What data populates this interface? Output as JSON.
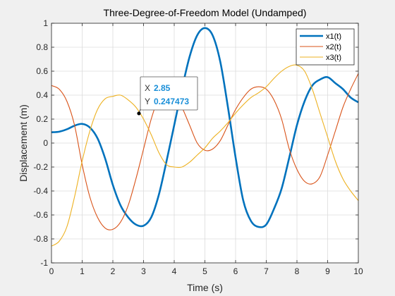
{
  "chart_data": {
    "type": "line",
    "title": "Three-Degree-of-Freedom Model (Undamped)",
    "xlabel": "Time (s)",
    "ylabel": "Displacement (m)",
    "xlim": [
      0,
      10
    ],
    "ylim": [
      -1,
      1
    ],
    "xticks": [
      "0",
      "1",
      "2",
      "3",
      "4",
      "5",
      "6",
      "7",
      "8",
      "9",
      "10"
    ],
    "yticks": [
      "-1",
      "-0.8",
      "-0.6",
      "-0.4",
      "-0.2",
      "0",
      "0.2",
      "0.4",
      "0.6",
      "0.8",
      "1"
    ],
    "grid": true,
    "legend_location": "top-right",
    "series": [
      {
        "name": "x1(t)",
        "color": "#0072bd",
        "x": [
          0,
          0.25,
          0.5,
          0.75,
          1.0,
          1.25,
          1.5,
          1.75,
          2.0,
          2.25,
          2.5,
          2.75,
          3.0,
          3.25,
          3.5,
          3.75,
          4.0,
          4.25,
          4.5,
          4.75,
          5.0,
          5.25,
          5.5,
          5.75,
          6.0,
          6.25,
          6.5,
          6.75,
          7.0,
          7.25,
          7.5,
          7.75,
          8.0,
          8.25,
          8.5,
          8.75,
          9.0,
          9.25,
          9.5,
          9.75,
          10.0
        ],
        "y": [
          0.09,
          0.095,
          0.115,
          0.145,
          0.16,
          0.13,
          0.04,
          -0.13,
          -0.35,
          -0.52,
          -0.62,
          -0.68,
          -0.69,
          -0.62,
          -0.43,
          -0.15,
          0.15,
          0.45,
          0.72,
          0.9,
          0.96,
          0.9,
          0.68,
          0.3,
          -0.12,
          -0.48,
          -0.65,
          -0.7,
          -0.68,
          -0.55,
          -0.38,
          -0.12,
          0.15,
          0.35,
          0.48,
          0.53,
          0.55,
          0.5,
          0.45,
          0.38,
          0.34
        ]
      },
      {
        "name": "x2(t)",
        "color": "#d95319",
        "x": [
          0,
          0.25,
          0.5,
          0.75,
          1.0,
          1.25,
          1.5,
          1.75,
          2.0,
          2.25,
          2.5,
          2.75,
          3.0,
          3.25,
          3.5,
          3.75,
          4.0,
          4.25,
          4.5,
          4.75,
          5.0,
          5.25,
          5.5,
          5.75,
          6.0,
          6.25,
          6.5,
          6.75,
          7.0,
          7.25,
          7.5,
          7.75,
          8.0,
          8.25,
          8.5,
          8.75,
          9.0,
          9.25,
          9.5,
          9.75,
          10.0
        ],
        "y": [
          0.48,
          0.45,
          0.35,
          0.15,
          -0.18,
          -0.45,
          -0.62,
          -0.71,
          -0.72,
          -0.66,
          -0.52,
          -0.3,
          -0.05,
          0.2,
          0.38,
          0.45,
          0.42,
          0.3,
          0.15,
          0.0,
          -0.06,
          -0.05,
          0.02,
          0.15,
          0.28,
          0.38,
          0.45,
          0.47,
          0.45,
          0.36,
          0.2,
          -0.05,
          -0.22,
          -0.32,
          -0.34,
          -0.28,
          -0.1,
          0.1,
          0.3,
          0.45,
          0.58
        ]
      },
      {
        "name": "x3(t)",
        "color": "#edb120",
        "x": [
          0,
          0.25,
          0.5,
          0.75,
          1.0,
          1.25,
          1.5,
          1.75,
          2.0,
          2.25,
          2.5,
          2.75,
          3.0,
          3.25,
          3.5,
          3.75,
          4.0,
          4.25,
          4.5,
          4.75,
          5.0,
          5.25,
          5.5,
          5.75,
          6.0,
          6.25,
          6.5,
          6.75,
          7.0,
          7.25,
          7.5,
          7.75,
          8.0,
          8.25,
          8.5,
          8.75,
          9.0,
          9.25,
          9.5,
          9.75,
          10.0
        ],
        "y": [
          -0.86,
          -0.82,
          -0.7,
          -0.45,
          -0.15,
          0.1,
          0.28,
          0.37,
          0.39,
          0.4,
          0.36,
          0.3,
          0.2,
          0.07,
          -0.08,
          -0.18,
          -0.2,
          -0.2,
          -0.16,
          -0.1,
          -0.04,
          0.04,
          0.1,
          0.17,
          0.25,
          0.32,
          0.38,
          0.42,
          0.47,
          0.54,
          0.6,
          0.64,
          0.65,
          0.6,
          0.45,
          0.25,
          0.05,
          -0.15,
          -0.3,
          -0.4,
          -0.48
        ]
      }
    ],
    "datatip": {
      "x_key": "X",
      "x_value": "2.85",
      "y_key": "Y",
      "y_value": "0.247473",
      "point_x": 2.85,
      "point_y": 0.247473
    }
  }
}
